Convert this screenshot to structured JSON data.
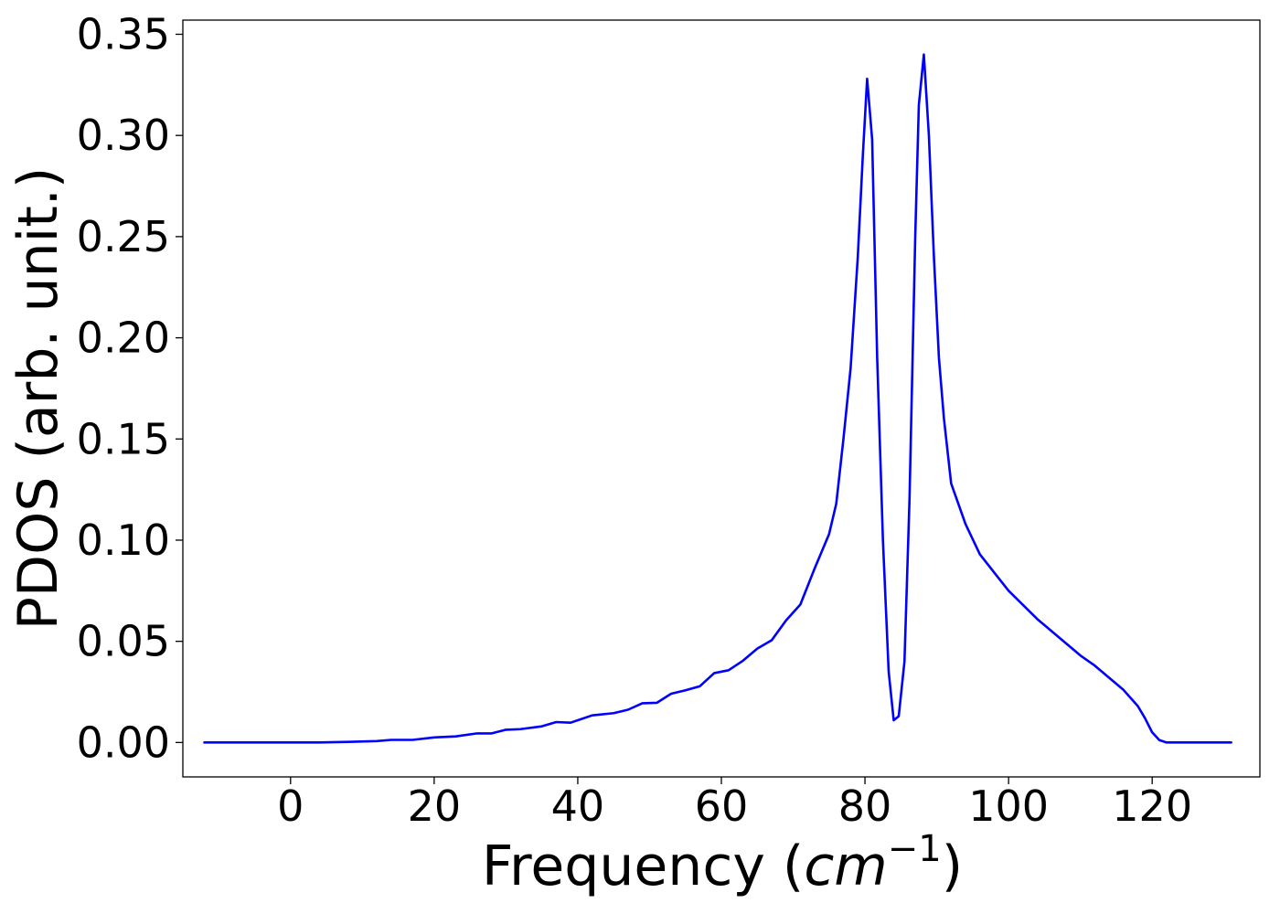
{
  "chart_data": {
    "type": "line",
    "title": "",
    "xlabel": {
      "prefix": "Frequency (",
      "base": "cm",
      "exponent": "−1",
      "suffix": ")"
    },
    "ylabel": "PDOS (arb. unit.)",
    "xlim": [
      -15,
      135
    ],
    "ylim": [
      -0.017,
      0.357
    ],
    "x_ticks": [
      0,
      20,
      40,
      60,
      80,
      100,
      120
    ],
    "x_tick_labels": [
      "0",
      "20",
      "40",
      "60",
      "80",
      "100",
      "120"
    ],
    "y_ticks": [
      0.0,
      0.05,
      0.1,
      0.15,
      0.2,
      0.25,
      0.3,
      0.35
    ],
    "y_tick_labels": [
      "0.00",
      "0.05",
      "0.10",
      "0.15",
      "0.20",
      "0.25",
      "0.30",
      "0.35"
    ],
    "grid": false,
    "legend": "none",
    "series": [
      {
        "color": "#0000ff",
        "points": [
          [
            -12,
            0.0
          ],
          [
            -5,
            0.0
          ],
          [
            0,
            0.0
          ],
          [
            4,
            0.0
          ],
          [
            8,
            0.0003
          ],
          [
            12,
            0.0007
          ],
          [
            14,
            0.0013
          ],
          [
            17,
            0.0013
          ],
          [
            20,
            0.0025
          ],
          [
            23,
            0.003
          ],
          [
            26,
            0.0045
          ],
          [
            28,
            0.0045
          ],
          [
            30,
            0.0063
          ],
          [
            32,
            0.0066
          ],
          [
            35,
            0.008
          ],
          [
            37,
            0.0101
          ],
          [
            39,
            0.0098
          ],
          [
            42,
            0.0134
          ],
          [
            45,
            0.0145
          ],
          [
            47,
            0.0162
          ],
          [
            49,
            0.0194
          ],
          [
            51,
            0.0196
          ],
          [
            53,
            0.0241
          ],
          [
            55,
            0.0258
          ],
          [
            57,
            0.0278
          ],
          [
            59,
            0.0343
          ],
          [
            61,
            0.0357
          ],
          [
            63,
            0.0404
          ],
          [
            65,
            0.0464
          ],
          [
            67,
            0.0505
          ],
          [
            69,
            0.0603
          ],
          [
            71,
            0.0682
          ],
          [
            73,
            0.0861
          ],
          [
            75,
            0.103
          ],
          [
            76,
            0.118
          ],
          [
            77,
            0.15
          ],
          [
            78,
            0.185
          ],
          [
            79,
            0.24
          ],
          [
            79.7,
            0.29
          ],
          [
            80.3,
            0.328
          ],
          [
            81,
            0.298
          ],
          [
            81.7,
            0.19
          ],
          [
            82.5,
            0.1
          ],
          [
            83.3,
            0.035
          ],
          [
            84,
            0.011
          ],
          [
            84.7,
            0.013
          ],
          [
            85.5,
            0.04
          ],
          [
            86.2,
            0.12
          ],
          [
            87,
            0.25
          ],
          [
            87.5,
            0.315
          ],
          [
            88.2,
            0.34
          ],
          [
            88.9,
            0.3
          ],
          [
            89.6,
            0.24
          ],
          [
            90.3,
            0.19
          ],
          [
            91,
            0.16
          ],
          [
            92,
            0.128
          ],
          [
            94,
            0.108
          ],
          [
            96,
            0.093
          ],
          [
            98,
            0.084
          ],
          [
            100,
            0.075
          ],
          [
            102,
            0.068
          ],
          [
            104,
            0.061
          ],
          [
            106,
            0.055
          ],
          [
            108,
            0.049
          ],
          [
            110,
            0.043
          ],
          [
            112,
            0.038
          ],
          [
            114,
            0.032
          ],
          [
            116,
            0.026
          ],
          [
            118,
            0.018
          ],
          [
            119,
            0.012
          ],
          [
            120,
            0.005
          ],
          [
            121,
            0.0012
          ],
          [
            122,
            0.0
          ],
          [
            125,
            0.0
          ],
          [
            131,
            0.0
          ]
        ]
      }
    ]
  }
}
